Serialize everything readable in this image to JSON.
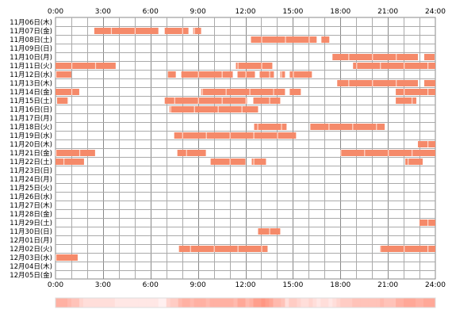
{
  "chart_data": {
    "type": "heatmap",
    "title": "",
    "xlabel": "",
    "ylabel": "",
    "xlim": [
      0,
      24
    ],
    "x_ticks": [
      "0:00",
      "3:00",
      "6:00",
      "9:00",
      "12:00",
      "15:00",
      "18:00",
      "21:00",
      "24:00"
    ],
    "grid": true,
    "colors": {
      "bar": "#f58a6a",
      "grid": "#999999",
      "background": "#ffffff"
    },
    "rows": [
      {
        "label": "11月06日(木)",
        "intervals": []
      },
      {
        "label": "11月07日(金)",
        "intervals": [
          [
            2.45,
            6.5
          ],
          [
            6.9,
            8.4
          ],
          [
            8.7,
            9.2
          ]
        ]
      },
      {
        "label": "11月08日(土)",
        "intervals": [
          [
            12.35,
            16.5
          ],
          [
            16.8,
            17.3
          ]
        ]
      },
      {
        "label": "11月09日(日)",
        "intervals": []
      },
      {
        "label": "11月10日(月)",
        "intervals": [
          [
            17.5,
            22.9
          ],
          [
            23.3,
            23.95
          ]
        ]
      },
      {
        "label": "11月11日(火)",
        "intervals": [
          [
            0.0,
            3.8
          ],
          [
            11.4,
            13.7
          ],
          [
            18.8,
            24.0
          ]
        ]
      },
      {
        "label": "11月12日(水)",
        "intervals": [
          [
            0.0,
            1.0
          ],
          [
            7.1,
            7.6
          ],
          [
            7.95,
            11.2
          ],
          [
            11.5,
            12.6
          ],
          [
            12.9,
            13.8
          ],
          [
            14.2,
            14.5
          ],
          [
            14.8,
            16.2
          ]
        ]
      },
      {
        "label": "11月13日(木)",
        "intervals": [
          [
            17.8,
            22.9
          ],
          [
            23.3,
            24.0
          ]
        ]
      },
      {
        "label": "11月14日(金)",
        "intervals": [
          [
            0.0,
            1.5
          ],
          [
            9.2,
            14.5
          ],
          [
            14.8,
            15.5
          ],
          [
            21.5,
            24.0
          ]
        ]
      },
      {
        "label": "11月15日(土)",
        "intervals": [
          [
            0.1,
            0.8
          ],
          [
            6.9,
            12.1
          ],
          [
            12.5,
            14.2
          ],
          [
            21.5,
            22.8
          ]
        ]
      },
      {
        "label": "11月16日(日)",
        "intervals": [
          [
            7.2,
            12.8
          ]
        ]
      },
      {
        "label": "11月17日(月)",
        "intervals": []
      },
      {
        "label": "11月18日(火)",
        "intervals": [
          [
            12.55,
            14.6
          ],
          [
            16.1,
            20.8
          ]
        ]
      },
      {
        "label": "11月19日(水)",
        "intervals": [
          [
            7.5,
            15.2
          ]
        ]
      },
      {
        "label": "11月20日(木)",
        "intervals": [
          [
            22.9,
            24.0
          ]
        ]
      },
      {
        "label": "11月21日(金)",
        "intervals": [
          [
            0.0,
            2.5
          ],
          [
            7.7,
            9.5
          ],
          [
            18.0,
            24.0
          ]
        ]
      },
      {
        "label": "11月22日(土)",
        "intervals": [
          [
            0.0,
            1.8
          ],
          [
            9.8,
            12.0
          ],
          [
            12.4,
            13.3
          ],
          [
            22.1,
            23.2
          ]
        ]
      },
      {
        "label": "11月23日(日)",
        "intervals": []
      },
      {
        "label": "11月24日(月)",
        "intervals": []
      },
      {
        "label": "11月25日(火)",
        "intervals": []
      },
      {
        "label": "11月26日(水)",
        "intervals": []
      },
      {
        "label": "11月27日(木)",
        "intervals": []
      },
      {
        "label": "11月28日(金)",
        "intervals": []
      },
      {
        "label": "11月29日(土)",
        "intervals": [
          [
            23.0,
            24.0
          ]
        ]
      },
      {
        "label": "11月30日(日)",
        "intervals": [
          [
            12.8,
            14.2
          ]
        ]
      },
      {
        "label": "12月01日(月)",
        "intervals": []
      },
      {
        "label": "12月02日(火)",
        "intervals": [
          [
            7.8,
            13.4
          ],
          [
            20.5,
            24.0
          ]
        ]
      },
      {
        "label": "12月03日(水)",
        "intervals": [
          [
            0.0,
            1.4
          ]
        ]
      },
      {
        "label": "12月04日(木)",
        "intervals": []
      },
      {
        "label": "12月05日(金)",
        "intervals": []
      }
    ],
    "density_strip": true
  }
}
